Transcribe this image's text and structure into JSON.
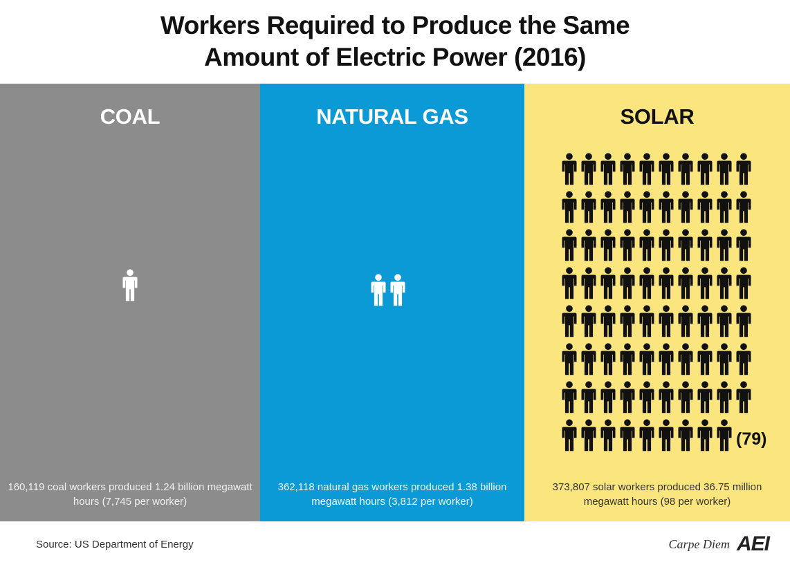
{
  "chart_data": {
    "type": "pictogram",
    "title_line1": "Workers Required to Produce the Same",
    "title_line2": "Amount of Electric Power (2016)",
    "series": [
      {
        "name": "COAL",
        "workers_icons": 1,
        "color": "#8c8c8c",
        "title_color": "#ffffff",
        "icon_color": "#ffffff",
        "caption_color": "#f0f0f0",
        "caption": "160,119 coal workers produced 1.24 billion megawatt hours (7,745 per worker)"
      },
      {
        "name": "NATURAL GAS",
        "workers_icons": 2,
        "color": "#0b9ad6",
        "title_color": "#ffffff",
        "icon_color": "#ffffff",
        "caption_color": "#f2f8fc",
        "caption": "362,118 natural gas workers produced 1.38 billion megawatt hours (3,812 per worker)"
      },
      {
        "name": "SOLAR",
        "workers_icons": 79,
        "color": "#fbe57f",
        "title_color": "#111111",
        "icon_color": "#111111",
        "caption_color": "#333333",
        "caption": "373,807 solar workers produced 36.75 million megawatt hours (98 per worker)",
        "count_label": "(79)"
      }
    ]
  },
  "footer": {
    "source": "Source: US Department of Energy",
    "brand_text": "Carpe Diem",
    "brand_logo": "AEI"
  }
}
